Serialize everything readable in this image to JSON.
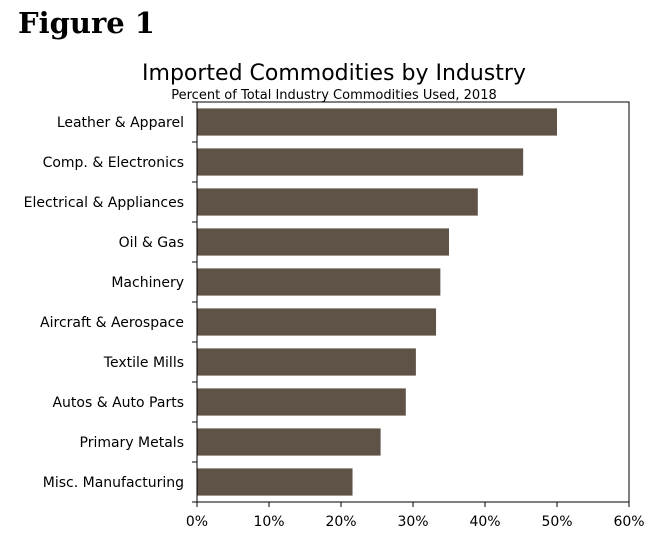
{
  "figure_label": "Figure 1",
  "chart_data": {
    "type": "bar",
    "orientation": "horizontal",
    "title": "Imported Commodities by Industry",
    "subtitle": "Percent of Total Industry Commodities Used, 2018",
    "xlabel": "",
    "ylabel": "",
    "categories": [
      "Leather & Apparel",
      "Comp. & Electronics",
      "Electrical & Appliances",
      "Oil & Gas",
      "Machinery",
      "Aircraft & Aerospace",
      "Textile Mills",
      "Autos & Auto Parts",
      "Primary Metals",
      "Misc. Manufacturing"
    ],
    "values": [
      50.0,
      45.3,
      39.0,
      35.0,
      33.8,
      33.2,
      30.4,
      29.0,
      25.5,
      21.6
    ],
    "xlim": [
      0,
      60
    ],
    "xticks": [
      0,
      10,
      20,
      30,
      40,
      50,
      60
    ],
    "xtick_labels": [
      "0%",
      "10%",
      "20%",
      "30%",
      "40%",
      "50%",
      "60%"
    ],
    "bar_color": "#5f5246",
    "grid": false
  }
}
